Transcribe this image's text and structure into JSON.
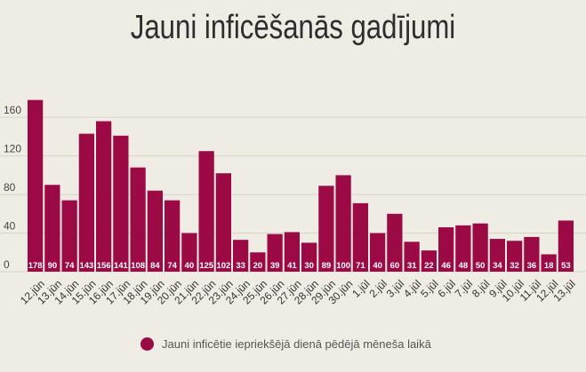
{
  "chart_data": {
    "type": "bar",
    "title": "Jauni inficēšanās gadījumi",
    "categories": [
      "12.jūn",
      "13.jūn",
      "14.jūn",
      "15.jūn",
      "16.jūn",
      "17.jūn",
      "18.jūn",
      "19.jūn",
      "20.jūn",
      "21.jūn",
      "22.jūn",
      "23.jūn",
      "24.jūn",
      "25.jūn",
      "26.jūn",
      "27.jūn",
      "28.jūn",
      "29.jūn",
      "30.jūn",
      "1.jūl",
      "2.jūl",
      "3.jūl",
      "4.jūl",
      "5.jūl",
      "6.jūl",
      "7.jūl",
      "8.jūl",
      "9.jūl",
      "10.jūl",
      "11.jūl",
      "12.jūl",
      "13.jūl"
    ],
    "series": [
      {
        "name": "Jauni inficētie iepriekšējā dienā pēdējā mēneša laikā",
        "values": [
          178,
          90,
          74,
          143,
          156,
          141,
          108,
          84,
          74,
          40,
          125,
          102,
          33,
          20,
          39,
          41,
          30,
          89,
          100,
          71,
          40,
          60,
          31,
          22,
          46,
          48,
          50,
          34,
          32,
          36,
          18,
          53
        ]
      }
    ],
    "ylim": [
      0,
      185
    ],
    "yticks": [
      0,
      40,
      80,
      120,
      160
    ],
    "grid": true,
    "legend": "bottom-center",
    "bar_color": "#9b0a45",
    "xlabel": "",
    "ylabel": ""
  }
}
